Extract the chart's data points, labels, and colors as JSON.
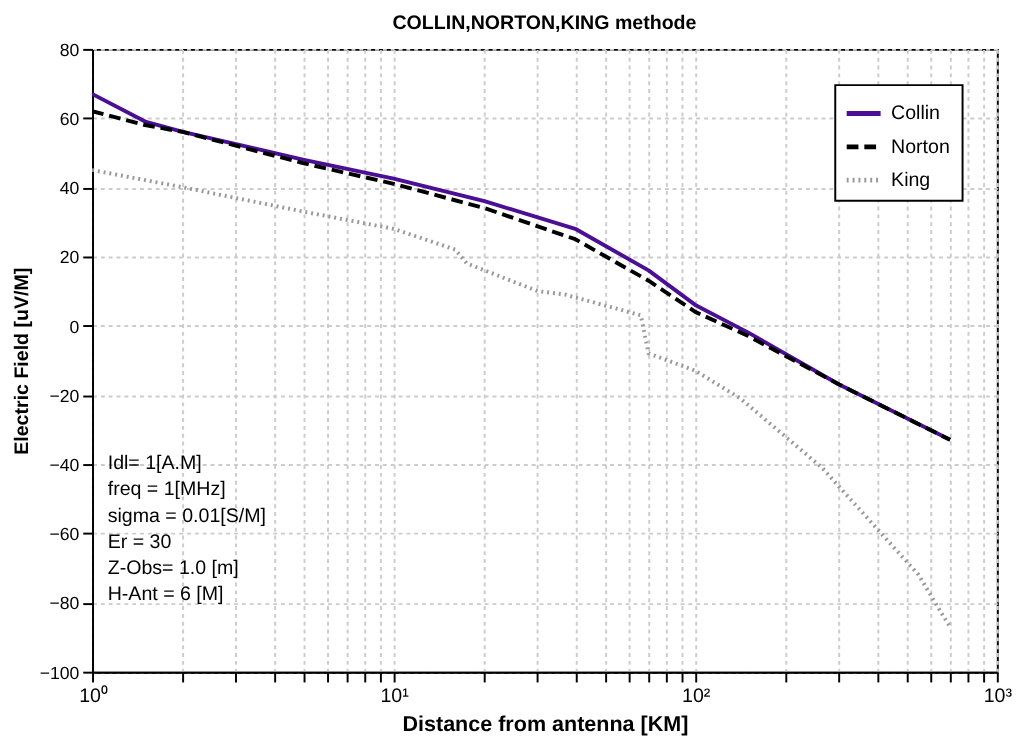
{
  "chart_data": {
    "type": "line",
    "title": "COLLIN,NORTON,KING methode",
    "xlabel": "Distance from antenna [KM]",
    "ylabel": "Electric Field [uV/M]",
    "log": "x",
    "grid": true,
    "legend": "top right",
    "xlim": [
      1,
      1000
    ],
    "ylim": [
      -100,
      80
    ],
    "xticks": [
      {
        "value": 1,
        "label": "10⁰"
      },
      {
        "value": 2,
        "label": null
      },
      {
        "value": 3,
        "label": null
      },
      {
        "value": 4,
        "label": null
      },
      {
        "value": 5,
        "label": null
      },
      {
        "value": 6,
        "label": null
      },
      {
        "value": 7,
        "label": null
      },
      {
        "value": 8,
        "label": null
      },
      {
        "value": 9,
        "label": null
      },
      {
        "value": 10,
        "label": "10¹"
      },
      {
        "value": 20,
        "label": null
      },
      {
        "value": 30,
        "label": null
      },
      {
        "value": 40,
        "label": null
      },
      {
        "value": 50,
        "label": null
      },
      {
        "value": 60,
        "label": null
      },
      {
        "value": 70,
        "label": null
      },
      {
        "value": 80,
        "label": null
      },
      {
        "value": 90,
        "label": null
      },
      {
        "value": 100,
        "label": "10²"
      },
      {
        "value": 200,
        "label": null
      },
      {
        "value": 300,
        "label": null
      },
      {
        "value": 400,
        "label": null
      },
      {
        "value": 500,
        "label": null
      },
      {
        "value": 600,
        "label": null
      },
      {
        "value": 700,
        "label": null
      },
      {
        "value": 800,
        "label": null
      },
      {
        "value": 900,
        "label": null
      },
      {
        "value": 1000,
        "label": "10³"
      }
    ],
    "yticks": [
      -100,
      -80,
      -60,
      -40,
      -20,
      0,
      20,
      40,
      60,
      80
    ],
    "series": [
      {
        "name": "Collin",
        "color": "#4b0f96",
        "line_style": "solid",
        "x": [
          1,
          1.5,
          2,
          5,
          10,
          20,
          40,
          70,
          100,
          150,
          300,
          700
        ],
        "values": [
          67,
          59,
          56,
          48,
          42.5,
          36,
          28,
          16,
          6,
          -2,
          -17,
          -33
        ]
      },
      {
        "name": "Norton",
        "color": "#000000",
        "line_style": "dashed",
        "x": [
          1,
          1.5,
          2,
          5,
          10,
          20,
          40,
          70,
          100,
          150,
          300,
          700
        ],
        "values": [
          62,
          58,
          56,
          47,
          41,
          34,
          25,
          13,
          4,
          -3,
          -17,
          -33
        ]
      },
      {
        "name": "King",
        "color": "#999999",
        "line_style": "dotted",
        "x": [
          1,
          2,
          5,
          10,
          16,
          17.5,
          30,
          37,
          66,
          70,
          100,
          141,
          263,
          550,
          665,
          700
        ],
        "values": [
          45,
          40,
          33,
          28,
          22,
          18,
          10,
          9,
          3,
          -8,
          -13,
          -21,
          -41,
          -72,
          -84,
          -87
        ]
      }
    ],
    "annotations": [
      "Idl= 1[A.M]",
      "freq = 1[MHz]",
      "sigma = 0.01[S/M]",
      "Er = 30",
      "Z-Obs= 1.0 [m]",
      "H-Ant = 6 [M]"
    ]
  }
}
